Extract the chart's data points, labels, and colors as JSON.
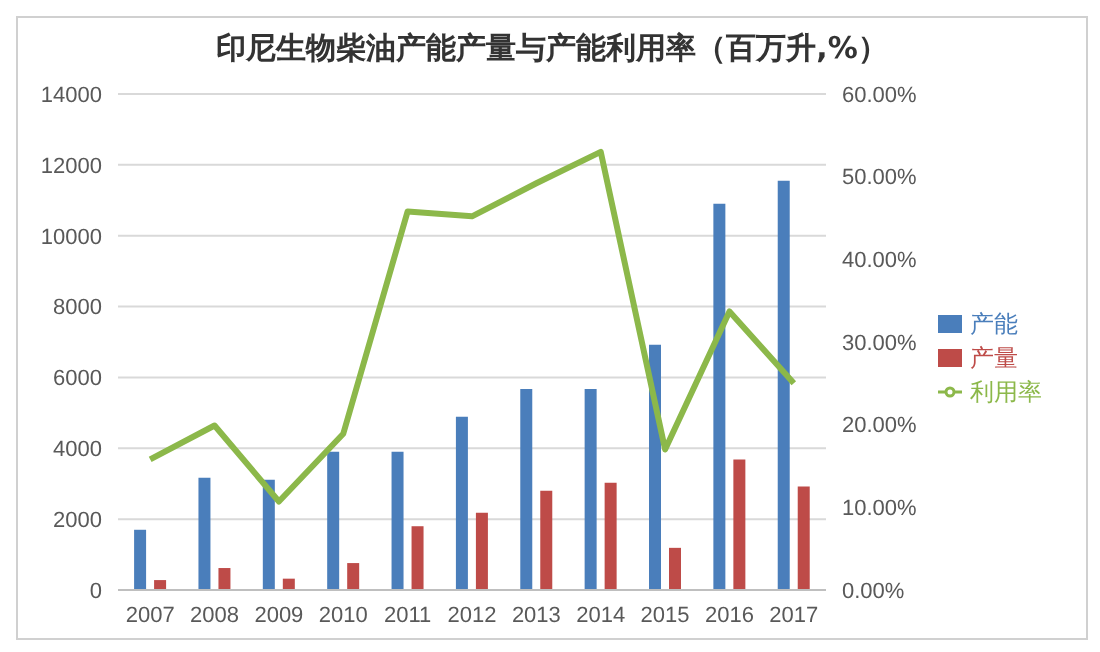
{
  "chart_data": {
    "type": "bar",
    "title": "印尼生物柴油产能产量与产能利用率（百万升,%）",
    "categories": [
      "2007",
      "2008",
      "2009",
      "2010",
      "2011",
      "2012",
      "2013",
      "2014",
      "2015",
      "2016",
      "2017"
    ],
    "series": [
      {
        "name": "产能",
        "color": "#4a7ebb",
        "values": [
          1700,
          3170,
          3110,
          3900,
          3900,
          4890,
          5670,
          5670,
          6920,
          10900,
          11550
        ]
      },
      {
        "name": "产量",
        "color": "#be4b48",
        "values": [
          280,
          620,
          320,
          760,
          1800,
          2180,
          2800,
          3030,
          1190,
          3680,
          2920
        ]
      },
      {
        "name": "利用率",
        "type": "line",
        "axis": "y2",
        "color": "#8cb84a",
        "values": [
          15.8,
          19.9,
          10.7,
          18.9,
          45.8,
          45.2,
          49.2,
          53.0,
          17.0,
          33.7,
          25.0
        ]
      }
    ],
    "ylim": [
      0,
      14000
    ],
    "yticks": [
      0,
      2000,
      4000,
      6000,
      8000,
      10000,
      12000,
      14000
    ],
    "y2lim": [
      0,
      60
    ],
    "y2ticks": [
      {
        "value": 0,
        "label": "0.00%"
      },
      {
        "value": 10,
        "label": "10.00%"
      },
      {
        "value": 20,
        "label": "20.00%"
      },
      {
        "value": 30,
        "label": "30.00%"
      },
      {
        "value": 40,
        "label": "40.00%"
      },
      {
        "value": 50,
        "label": "50.00%"
      },
      {
        "value": 60,
        "label": "60.00%"
      }
    ],
    "grid": "y",
    "legend": "right",
    "marker": "none"
  }
}
